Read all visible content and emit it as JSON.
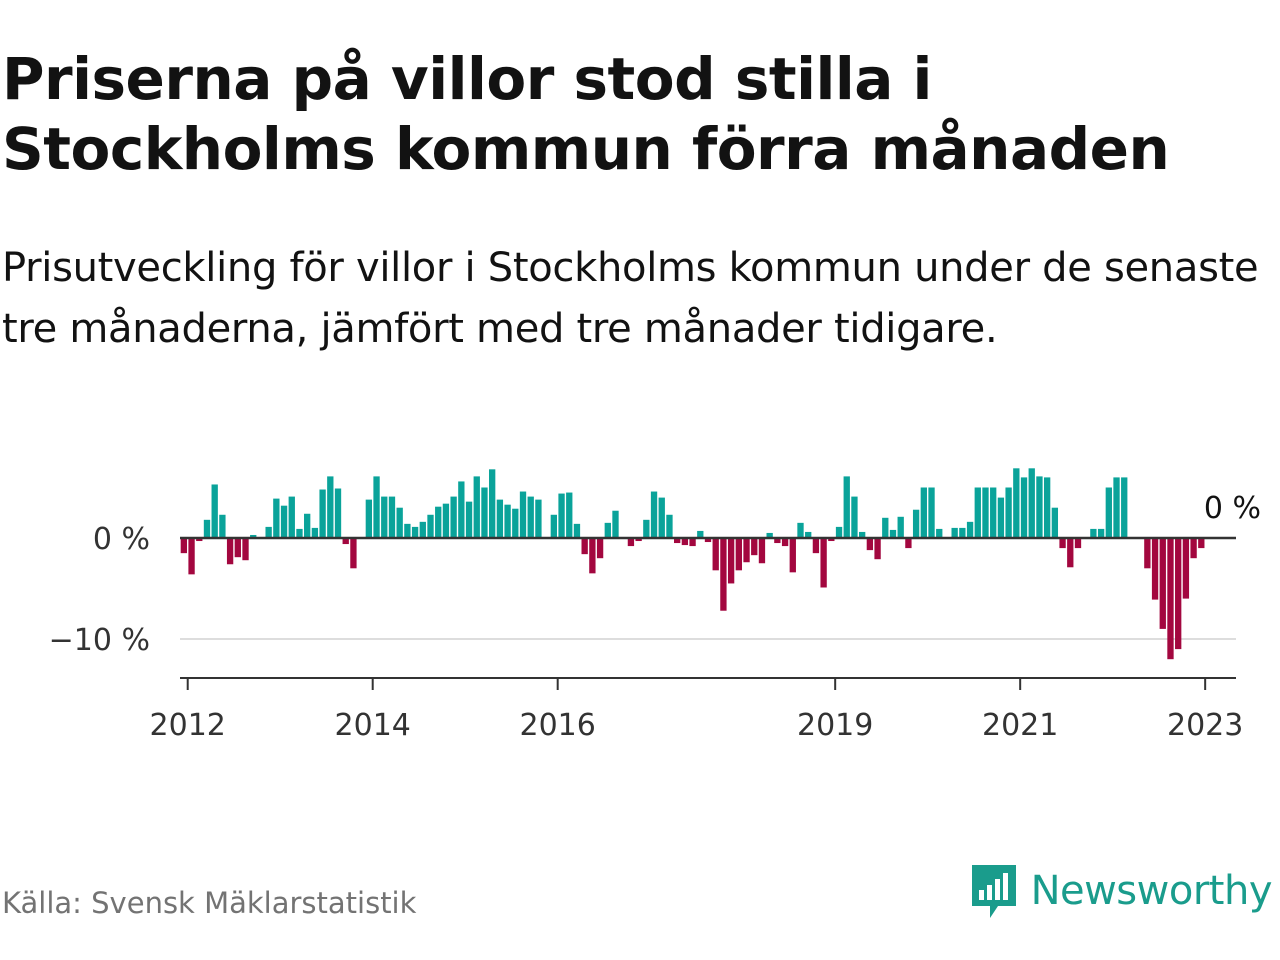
{
  "title": "Priserna på villor stod stilla i Stockholms kommun förra månaden",
  "subtitle": "Prisutveckling för villor i Stockholms kommun under de senaste tre månaderna, jämfört med tre månader tidigare.",
  "source": "Källa: Svensk Mäklarstatistik",
  "brand": {
    "name": "Newsworthy",
    "icon": "newsworthy-logo-icon"
  },
  "colors": {
    "positive": "#0aa39a",
    "negative": "#a3073f",
    "axis": "#333333",
    "grid": "#dddddd",
    "brand": "#1a9c8c"
  },
  "chart_data": {
    "type": "bar",
    "x_start": "2011-12",
    "x_end": "2023-04",
    "y_range": [
      -14,
      9
    ],
    "y_ticks": [
      {
        "value": 0,
        "label": "0 %"
      },
      {
        "value": -10,
        "label": "−10 %"
      }
    ],
    "x_ticks": [
      {
        "date": "2012-01",
        "label": "2012"
      },
      {
        "date": "2014-01",
        "label": "2014"
      },
      {
        "date": "2016-01",
        "label": "2016"
      },
      {
        "date": "2019-01",
        "label": "2019"
      },
      {
        "date": "2021-01",
        "label": "2021"
      },
      {
        "date": "2023-01",
        "label": "2023"
      }
    ],
    "annotation": {
      "date": "2023-03",
      "label": "0 %"
    },
    "grid": "horizontal",
    "series": [
      {
        "values": [
          [
            "2011-12",
            -1.5
          ],
          [
            "2012-01",
            -3.6
          ],
          [
            "2012-02",
            -0.3
          ],
          [
            "2012-03",
            1.8
          ],
          [
            "2012-04",
            5.3
          ],
          [
            "2012-05",
            2.3
          ],
          [
            "2012-06",
            -2.6
          ],
          [
            "2012-07",
            -1.9
          ],
          [
            "2012-08",
            -2.2
          ],
          [
            "2012-09",
            0.3
          ],
          [
            "2012-10",
            0.0
          ],
          [
            "2012-11",
            1.1
          ],
          [
            "2012-12",
            3.9
          ],
          [
            "2013-01",
            3.2
          ],
          [
            "2013-02",
            4.1
          ],
          [
            "2013-03",
            0.9
          ],
          [
            "2013-04",
            2.4
          ],
          [
            "2013-05",
            1.0
          ],
          [
            "2013-06",
            4.8
          ],
          [
            "2013-07",
            6.1
          ],
          [
            "2013-08",
            4.9
          ],
          [
            "2013-09",
            -0.6
          ],
          [
            "2013-10",
            -3.0
          ],
          [
            "2013-11",
            0.0
          ],
          [
            "2013-12",
            3.8
          ],
          [
            "2014-01",
            6.1
          ],
          [
            "2014-02",
            4.1
          ],
          [
            "2014-03",
            4.1
          ],
          [
            "2014-04",
            3.0
          ],
          [
            "2014-05",
            1.4
          ],
          [
            "2014-06",
            1.1
          ],
          [
            "2014-07",
            1.6
          ],
          [
            "2014-08",
            2.3
          ],
          [
            "2014-09",
            3.1
          ],
          [
            "2014-10",
            3.4
          ],
          [
            "2014-11",
            4.1
          ],
          [
            "2014-12",
            5.6
          ],
          [
            "2015-01",
            3.6
          ],
          [
            "2015-02",
            6.1
          ],
          [
            "2015-03",
            5.0
          ],
          [
            "2015-04",
            6.8
          ],
          [
            "2015-05",
            3.8
          ],
          [
            "2015-06",
            3.3
          ],
          [
            "2015-07",
            2.9
          ],
          [
            "2015-08",
            4.6
          ],
          [
            "2015-09",
            4.1
          ],
          [
            "2015-10",
            3.8
          ],
          [
            "2015-11",
            0.0
          ],
          [
            "2015-12",
            2.3
          ],
          [
            "2016-01",
            4.4
          ],
          [
            "2016-02",
            4.5
          ],
          [
            "2016-03",
            1.4
          ],
          [
            "2016-04",
            -1.6
          ],
          [
            "2016-05",
            -3.5
          ],
          [
            "2016-06",
            -2.0
          ],
          [
            "2016-07",
            1.5
          ],
          [
            "2016-08",
            2.7
          ],
          [
            "2016-09",
            -0.1
          ],
          [
            "2016-10",
            -0.8
          ],
          [
            "2016-11",
            -0.3
          ],
          [
            "2016-12",
            1.8
          ],
          [
            "2017-01",
            4.6
          ],
          [
            "2017-02",
            4.0
          ],
          [
            "2017-03",
            2.3
          ],
          [
            "2017-04",
            -0.5
          ],
          [
            "2017-05",
            -0.7
          ],
          [
            "2017-06",
            -0.8
          ],
          [
            "2017-07",
            0.7
          ],
          [
            "2017-08",
            -0.4
          ],
          [
            "2017-09",
            -3.2
          ],
          [
            "2017-10",
            -7.2
          ],
          [
            "2017-11",
            -4.5
          ],
          [
            "2017-12",
            -3.2
          ],
          [
            "2018-01",
            -2.4
          ],
          [
            "2018-02",
            -1.7
          ],
          [
            "2018-03",
            -2.5
          ],
          [
            "2018-04",
            0.5
          ],
          [
            "2018-05",
            -0.5
          ],
          [
            "2018-06",
            -0.8
          ],
          [
            "2018-07",
            -3.4
          ],
          [
            "2018-08",
            1.5
          ],
          [
            "2018-09",
            0.6
          ],
          [
            "2018-10",
            -1.5
          ],
          [
            "2018-11",
            -4.9
          ],
          [
            "2018-12",
            -0.3
          ],
          [
            "2019-01",
            1.1
          ],
          [
            "2019-02",
            6.1
          ],
          [
            "2019-03",
            4.1
          ],
          [
            "2019-04",
            0.6
          ],
          [
            "2019-05",
            -1.2
          ],
          [
            "2019-06",
            -2.1
          ],
          [
            "2019-07",
            2.0
          ],
          [
            "2019-08",
            0.8
          ],
          [
            "2019-09",
            2.1
          ],
          [
            "2019-10",
            -1.0
          ],
          [
            "2019-11",
            2.8
          ],
          [
            "2019-12",
            5.0
          ],
          [
            "2020-01",
            5.0
          ],
          [
            "2020-02",
            0.9
          ],
          [
            "2020-03",
            0.0
          ],
          [
            "2020-04",
            1.0
          ],
          [
            "2020-05",
            1.0
          ],
          [
            "2020-06",
            1.6
          ],
          [
            "2020-07",
            5.0
          ],
          [
            "2020-08",
            5.0
          ],
          [
            "2020-09",
            5.0
          ],
          [
            "2020-10",
            4.0
          ],
          [
            "2020-11",
            5.0
          ],
          [
            "2020-12",
            6.9
          ],
          [
            "2021-01",
            6.0
          ],
          [
            "2021-02",
            6.9
          ],
          [
            "2021-03",
            6.1
          ],
          [
            "2021-04",
            6.0
          ],
          [
            "2021-05",
            3.0
          ],
          [
            "2021-06",
            -1.0
          ],
          [
            "2021-07",
            -2.9
          ],
          [
            "2021-08",
            -1.0
          ],
          [
            "2021-09",
            0.0
          ],
          [
            "2021-10",
            0.9
          ],
          [
            "2021-11",
            0.9
          ],
          [
            "2021-12",
            5.0
          ],
          [
            "2022-01",
            6.0
          ],
          [
            "2022-02",
            6.0
          ],
          [
            "2022-03",
            0.0
          ],
          [
            "2022-04",
            0.0
          ],
          [
            "2022-05",
            -3.0
          ],
          [
            "2022-06",
            -6.1
          ],
          [
            "2022-07",
            -9.0
          ],
          [
            "2022-08",
            -12.0
          ],
          [
            "2022-09",
            -11.0
          ],
          [
            "2022-10",
            -6.0
          ],
          [
            "2022-11",
            -2.0
          ],
          [
            "2022-12",
            -1.0
          ],
          [
            "2023-01",
            0.0
          ],
          [
            "2023-02",
            0.0
          ],
          [
            "2023-03",
            0.0
          ]
        ]
      }
    ]
  }
}
